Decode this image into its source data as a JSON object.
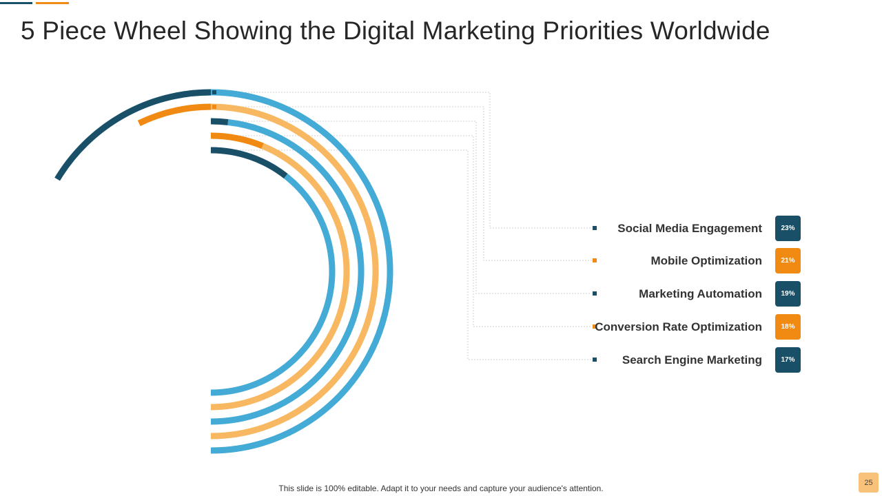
{
  "slide": {
    "title": "5 Piece Wheel Showing the Digital Marketing Priorities Worldwide",
    "footer": "This slide is 100% editable. Adapt it to your needs and capture your audience's attention.",
    "page_number": "25"
  },
  "colors": {
    "dark_teal": "#1a4f68",
    "orange": "#f08a12",
    "light_blue": "#44aad6",
    "light_orange": "#f8b862",
    "connector": "#cfcfcf",
    "label_text": "#333333"
  },
  "chart_data": {
    "type": "radial-bar",
    "title": "",
    "categories": [
      "Social Media Engagement",
      "Mobile Optimization",
      "Marketing Automation",
      "Conversion Rate Optimization",
      "Search Engine Marketing"
    ],
    "values": [
      23,
      21,
      19,
      18,
      17
    ],
    "value_labels": [
      "23%",
      "21%",
      "19%",
      "18%",
      "17%"
    ],
    "series_colors": [
      "#1a4f68",
      "#f08a12",
      "#1a4f68",
      "#f08a12",
      "#1a4f68"
    ],
    "remainder_colors": [
      "#44aad6",
      "#f8b862",
      "#44aad6",
      "#f8b862",
      "#44aad6"
    ],
    "legend_position": "right"
  }
}
